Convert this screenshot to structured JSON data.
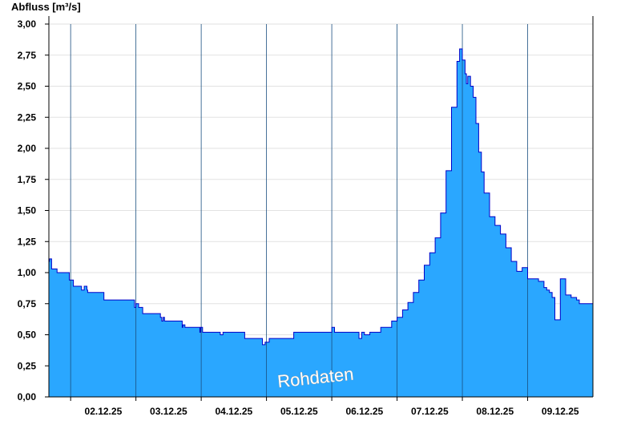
{
  "chart_data": {
    "type": "area",
    "ylabel": "Abfluss [m³/s]",
    "ylim": [
      0,
      3
    ],
    "yticks": [
      "0,00",
      "0,25",
      "0,50",
      "0,75",
      "1,00",
      "1,25",
      "1,50",
      "1,75",
      "2,00",
      "2,25",
      "2,50",
      "2,75",
      "3,00"
    ],
    "ytick_values": [
      0,
      0.25,
      0.5,
      0.75,
      1,
      1.25,
      1.5,
      1.75,
      2,
      2.25,
      2.5,
      2.75,
      3
    ],
    "x_start": "01.12.25 16:00",
    "x_end": "09.12.25 24:00",
    "xticks": [
      "02.12.25",
      "03.12.25",
      "04.12.25",
      "05.12.25",
      "06.12.25",
      "07.12.25",
      "08.12.25",
      "09.12.25"
    ],
    "grid": "horizontal",
    "fill_color": "#2aa7ff",
    "line_color": "#0000c8",
    "annotation": "Rohdaten",
    "series": [
      {
        "x": [
          "01.12.25 16:00",
          "01.12.25 16:15",
          "01.12.25 17:00",
          "01.12.25 19:00",
          "01.12.25 23:30",
          "02.12.25 01:00",
          "02.12.25 04:00",
          "02.12.25 05:00",
          "02.12.25 06:00",
          "02.12.25 06:15",
          "02.12.25 07:00",
          "02.12.25 12:00",
          "02.12.25 12:15",
          "02.12.25 13:00",
          "02.12.25 13:30",
          "02.12.25 14:00",
          "02.12.25 18:00",
          "02.12.25 23:30",
          "03.12.25 00:00",
          "03.12.25 01:00",
          "03.12.25 02:30",
          "03.12.25 03:30",
          "03.12.25 06:00",
          "03.12.25 09:00",
          "03.12.25 09:30",
          "03.12.25 10:00",
          "03.12.25 10:30",
          "03.12.25 12:00",
          "03.12.25 17:00",
          "03.12.25 17:15",
          "03.12.25 18:00",
          "03.12.25 23:30",
          "03.12.25 23:45",
          "04.12.25 00:30",
          "04.12.25 02:00",
          "04.12.25 06:00",
          "04.12.25 07:00",
          "04.12.25 08:00",
          "04.12.25 10:00",
          "04.12.25 16:00",
          "04.12.25 20:00",
          "04.12.25 21:30",
          "04.12.25 22:30",
          "04.12.25 23:30",
          "05.12.25 01:00",
          "05.12.25 09:00",
          "05.12.25 10:00",
          "05.12.25 14:00",
          "05.12.25 18:00",
          "05.12.25 22:00",
          "06.12.25 00:00",
          "06.12.25 01:00",
          "06.12.25 02:00",
          "06.12.25 08:00",
          "06.12.25 10:00",
          "06.12.25 11:00",
          "06.12.25 12:00",
          "06.12.25 14:00",
          "06.12.25 18:00",
          "06.12.25 22:00",
          "07.12.25 00:00",
          "07.12.25 02:00",
          "07.12.25 04:00",
          "07.12.25 06:00",
          "07.12.25 08:00",
          "07.12.25 10:00",
          "07.12.25 12:00",
          "07.12.25 14:00",
          "07.12.25 16:00",
          "07.12.25 18:00",
          "07.12.25 20:00",
          "07.12.25 22:00",
          "07.12.25 23:00",
          "08.12.25 00:00",
          "08.12.25 01:00",
          "08.12.25 01:30",
          "08.12.25 02:00",
          "08.12.25 03:00",
          "08.12.25 04:00",
          "08.12.25 05:00",
          "08.12.25 06:00",
          "08.12.25 07:00",
          "08.12.25 08:00",
          "08.12.25 10:00",
          "08.12.25 12:00",
          "08.12.25 14:00",
          "08.12.25 16:00",
          "08.12.25 18:00",
          "08.12.25 20:00",
          "08.12.25 22:00",
          "09.12.25 00:00",
          "09.12.25 02:00",
          "09.12.25 04:00",
          "09.12.25 06:00",
          "09.12.25 07:00",
          "09.12.25 08:00",
          "09.12.25 09:00",
          "09.12.25 10:00",
          "09.12.25 12:00",
          "09.12.25 14:00",
          "09.12.25 16:00",
          "09.12.25 18:00",
          "09.12.25 19:00",
          "09.12.25 20:00",
          "09.12.25 21:00",
          "09.12.25 22:00",
          "09.12.25 23:00",
          "09.12.25 24:00"
        ],
        "y": [
          1.09,
          1.11,
          1.03,
          1.0,
          0.94,
          0.89,
          0.86,
          0.89,
          0.86,
          0.84,
          0.84,
          0.84,
          0.78,
          0.78,
          0.78,
          0.78,
          0.78,
          0.72,
          0.75,
          0.72,
          0.67,
          0.67,
          0.67,
          0.64,
          0.61,
          0.64,
          0.61,
          0.61,
          0.56,
          0.58,
          0.56,
          0.52,
          0.56,
          0.52,
          0.52,
          0.52,
          0.5,
          0.52,
          0.52,
          0.47,
          0.47,
          0.47,
          0.42,
          0.44,
          0.47,
          0.47,
          0.52,
          0.52,
          0.52,
          0.52,
          0.56,
          0.52,
          0.52,
          0.52,
          0.47,
          0.52,
          0.5,
          0.52,
          0.56,
          0.61,
          0.64,
          0.7,
          0.76,
          0.84,
          0.94,
          1.06,
          1.16,
          1.28,
          1.48,
          1.82,
          2.33,
          2.7,
          2.8,
          2.71,
          2.6,
          2.52,
          2.58,
          2.5,
          2.41,
          2.2,
          1.97,
          1.81,
          1.64,
          1.45,
          1.38,
          1.31,
          1.2,
          1.09,
          1.01,
          1.04,
          0.95,
          0.95,
          0.93,
          0.88,
          0.86,
          0.84,
          0.8,
          0.62,
          0.95,
          0.82,
          0.8,
          0.78,
          0.75,
          0.75,
          0.75,
          0.75,
          0.75,
          0.75
        ]
      }
    ]
  }
}
